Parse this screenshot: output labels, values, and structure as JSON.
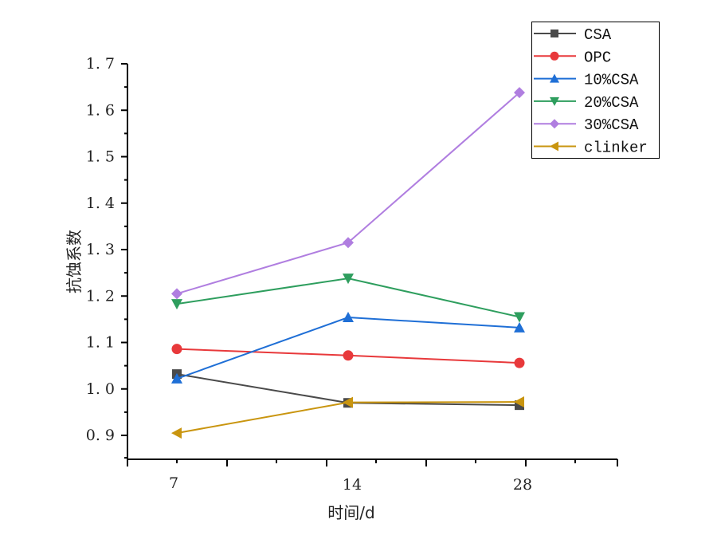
{
  "chart_data": {
    "type": "line",
    "title": "",
    "xlabel": "时间/d",
    "ylabel": "抗蚀系数",
    "categories": [
      "7",
      "14",
      "28"
    ],
    "ylim": [
      0.85,
      1.7
    ],
    "yticks": [
      "0.9",
      "1.0",
      "1.1",
      "1.2",
      "1.3",
      "1.4",
      "1.5",
      "1.6",
      "1.7"
    ],
    "grid": false,
    "legend_position": "top-right",
    "series": [
      {
        "name": "CSA",
        "color": "#4a4a4a",
        "marker": "square",
        "values": [
          1.032,
          0.97,
          0.965
        ]
      },
      {
        "name": "OPC",
        "color": "#e8393b",
        "marker": "circle",
        "values": [
          1.086,
          1.072,
          1.056
        ]
      },
      {
        "name": "10%CSA",
        "color": "#1f6fd6",
        "marker": "triangle-up",
        "values": [
          1.022,
          1.154,
          1.132
        ]
      },
      {
        "name": "20%CSA",
        "color": "#2e9e5e",
        "marker": "triangle-down",
        "values": [
          1.183,
          1.238,
          1.155
        ]
      },
      {
        "name": "30%CSA",
        "color": "#b07ee0",
        "marker": "diamond",
        "values": [
          1.205,
          1.315,
          1.638
        ]
      },
      {
        "name": "clinker",
        "color": "#c9950f",
        "marker": "triangle-left",
        "values": [
          0.905,
          0.971,
          0.972
        ]
      }
    ]
  }
}
